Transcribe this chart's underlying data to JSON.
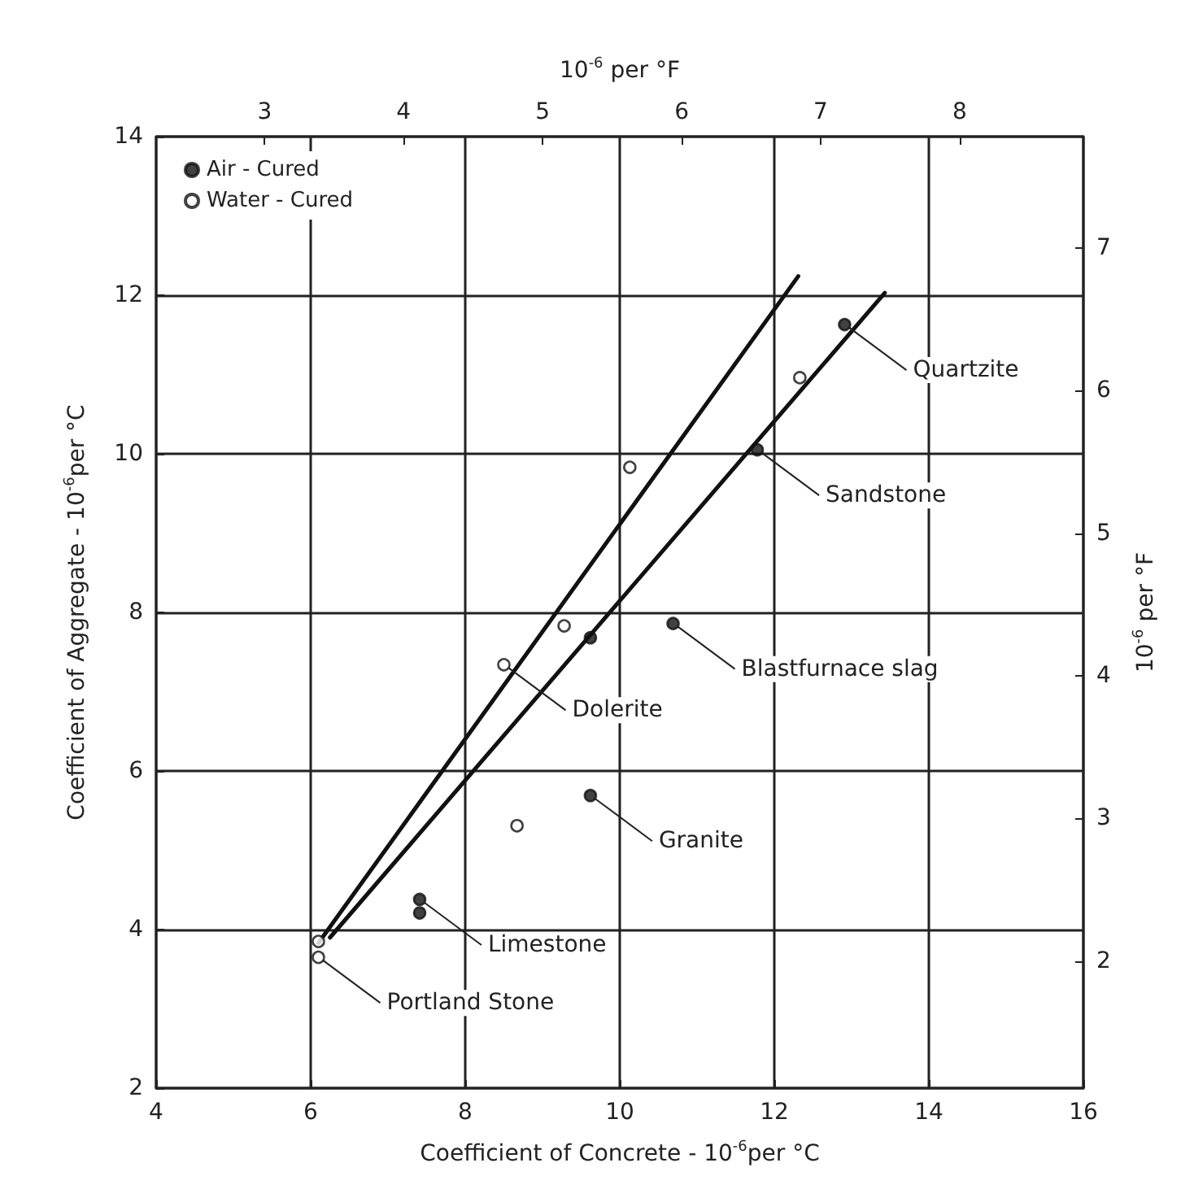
{
  "chart_data": {
    "type": "scatter",
    "xlabel": "Coefficient of Concrete - 10$^{-6}$per °C",
    "ylabel": "Coefficient of Aggregate - 10$^{-6}$per °C",
    "x2label": "10$^{-6}$ per °F",
    "y2label": "10$^{-6}$ per °F",
    "xlim": [
      4,
      16
    ],
    "xticks": [
      4,
      6,
      8,
      10,
      12,
      14,
      16
    ],
    "ylim": [
      2,
      14
    ],
    "yticks": [
      2,
      4,
      6,
      8,
      10,
      12,
      14
    ],
    "x2lim": [
      2.22,
      8.89
    ],
    "x2ticks": [
      3,
      4,
      5,
      6,
      7,
      8
    ],
    "y2lim": [
      1.11,
      7.78
    ],
    "y2ticks": [
      2,
      3,
      4,
      5,
      6,
      7
    ],
    "grid": true,
    "legend": "top left",
    "marker": "circle",
    "series": [
      {
        "name": "Air - Cured",
        "color": "#111111",
        "x": [
          12.91,
          11.78,
          10.69,
          9.62,
          9.62,
          7.41,
          7.41
        ],
        "values": [
          11.63,
          10.05,
          7.86,
          7.68,
          5.69,
          4.38,
          4.21
        ]
      },
      {
        "name": "Water - Cured",
        "color": "#ffffff",
        "x": [
          12.33,
          10.13,
          9.28,
          8.5,
          8.67,
          6.1,
          6.1
        ],
        "values": [
          10.96,
          9.83,
          7.83,
          7.34,
          5.31,
          3.85,
          3.65
        ]
      },
      {
        "type": "line",
        "color": "#111111",
        "marker": "none",
        "x": [
          6.1,
          12.31
        ],
        "values": [
          3.83,
          12.24
        ]
      },
      {
        "type": "line",
        "color": "#111111",
        "marker": "none",
        "x": [
          6.25,
          13.43
        ],
        "values": [
          3.9,
          12.03
        ]
      }
    ],
    "annotations": [
      {
        "text": "Quartzite",
        "x": 12.91,
        "y": 11.63
      },
      {
        "text": "Sandstone",
        "x": 11.78,
        "y": 10.05
      },
      {
        "text": "Blastfurnace slag",
        "x": 10.69,
        "y": 7.86
      },
      {
        "text": "Dolerite",
        "x": 8.5,
        "y": 7.34
      },
      {
        "text": "Granite",
        "x": 9.62,
        "y": 5.69
      },
      {
        "text": "Limestone",
        "x": 7.41,
        "y": 4.38
      },
      {
        "text": "Portland Stone",
        "x": 6.1,
        "y": 3.65
      }
    ]
  }
}
